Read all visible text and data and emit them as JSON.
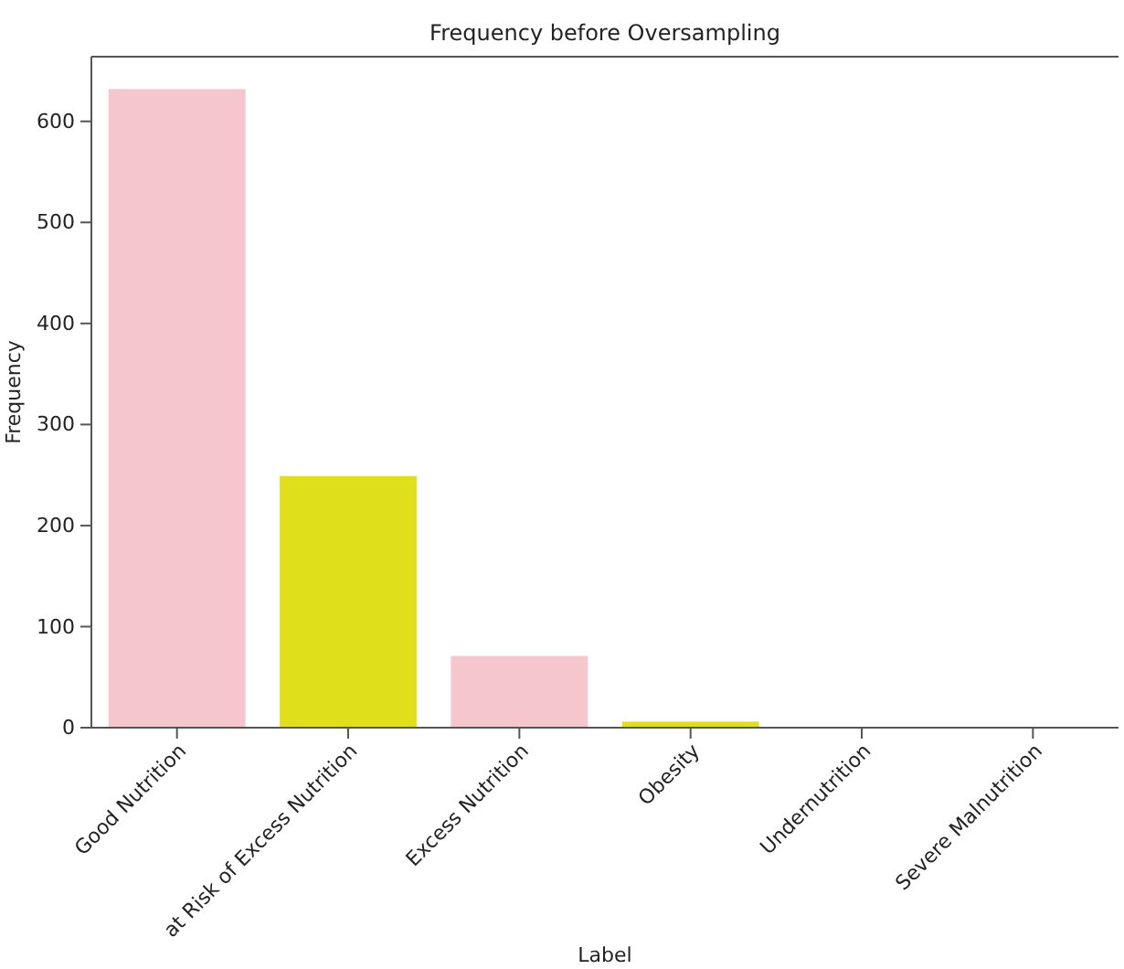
{
  "chart_data": {
    "type": "bar",
    "title": "Frequency before Oversampling",
    "xlabel": "Label",
    "ylabel": "Frequency",
    "categories": [
      "Good Nutrition",
      "at Risk of Excess Nutrition",
      "Excess Nutrition",
      "Obesity",
      "Undernutrition",
      "Severe Malnutrition"
    ],
    "values": [
      632,
      249,
      71,
      6,
      0,
      0
    ],
    "colors": [
      "#f6c6cf",
      "#dfe01b",
      "#f6c6cf",
      "#dfe01b",
      "#f6c6cf",
      "#dfe01b"
    ],
    "ylim": [
      0,
      664
    ],
    "yticks": [
      0,
      100,
      200,
      300,
      400,
      500,
      600
    ],
    "grid": false
  }
}
